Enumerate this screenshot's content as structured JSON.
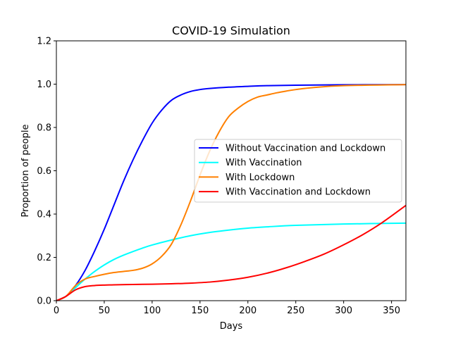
{
  "chart_data": {
    "type": "line",
    "title": "COVID-19 Simulation",
    "xlabel": "Days",
    "ylabel": "Proportion of people",
    "xlim": [
      0,
      365
    ],
    "ylim": [
      0,
      1.2
    ],
    "xticks": [
      0,
      50,
      100,
      150,
      200,
      250,
      300,
      350
    ],
    "yticks": [
      0.0,
      0.2,
      0.4,
      0.6,
      0.8,
      1.0,
      1.2
    ],
    "xtick_labels": [
      "0",
      "50",
      "100",
      "150",
      "200",
      "250",
      "300",
      "350"
    ],
    "ytick_labels": [
      "0.0",
      "0.2",
      "0.4",
      "0.6",
      "0.8",
      "1.0",
      "1.2"
    ],
    "grid": false,
    "legend_position": "center-right",
    "series": [
      {
        "name": "Without Vaccination and Lockdown",
        "color": "#0000ff",
        "x": [
          0,
          10,
          20,
          30,
          40,
          50,
          60,
          70,
          80,
          90,
          100,
          110,
          120,
          130,
          140,
          150,
          160,
          180,
          200,
          220,
          250,
          300,
          365
        ],
        "y": [
          0.0,
          0.02,
          0.07,
          0.14,
          0.23,
          0.33,
          0.44,
          0.55,
          0.65,
          0.74,
          0.82,
          0.88,
          0.925,
          0.95,
          0.966,
          0.975,
          0.98,
          0.986,
          0.99,
          0.993,
          0.995,
          0.997,
          0.998
        ]
      },
      {
        "name": "With Vaccination",
        "color": "#00ffff",
        "x": [
          0,
          10,
          20,
          30,
          40,
          50,
          60,
          70,
          80,
          90,
          100,
          120,
          140,
          160,
          180,
          200,
          220,
          250,
          300,
          365
        ],
        "y": [
          0.0,
          0.02,
          0.06,
          0.1,
          0.135,
          0.165,
          0.19,
          0.21,
          0.227,
          0.243,
          0.257,
          0.28,
          0.3,
          0.315,
          0.326,
          0.335,
          0.341,
          0.348,
          0.354,
          0.358
        ]
      },
      {
        "name": "With Lockdown",
        "color": "#ff8000",
        "x": [
          0,
          10,
          20,
          30,
          40,
          50,
          60,
          70,
          80,
          90,
          100,
          110,
          120,
          130,
          140,
          150,
          160,
          170,
          180,
          190,
          200,
          210,
          220,
          230,
          240,
          250,
          270,
          300,
          365
        ],
        "y": [
          0.0,
          0.02,
          0.07,
          0.1,
          0.112,
          0.122,
          0.13,
          0.135,
          0.14,
          0.15,
          0.17,
          0.205,
          0.26,
          0.35,
          0.46,
          0.58,
          0.69,
          0.78,
          0.85,
          0.89,
          0.92,
          0.94,
          0.95,
          0.96,
          0.968,
          0.975,
          0.985,
          0.993,
          0.998
        ]
      },
      {
        "name": "With Vaccination and Lockdown",
        "color": "#ff0000",
        "x": [
          0,
          10,
          20,
          30,
          40,
          50,
          60,
          80,
          100,
          120,
          140,
          160,
          180,
          200,
          220,
          240,
          260,
          280,
          300,
          320,
          340,
          365
        ],
        "y": [
          0.0,
          0.02,
          0.05,
          0.065,
          0.07,
          0.072,
          0.073,
          0.075,
          0.076,
          0.078,
          0.081,
          0.086,
          0.095,
          0.108,
          0.127,
          0.152,
          0.182,
          0.216,
          0.258,
          0.305,
          0.36,
          0.44
        ]
      }
    ]
  }
}
